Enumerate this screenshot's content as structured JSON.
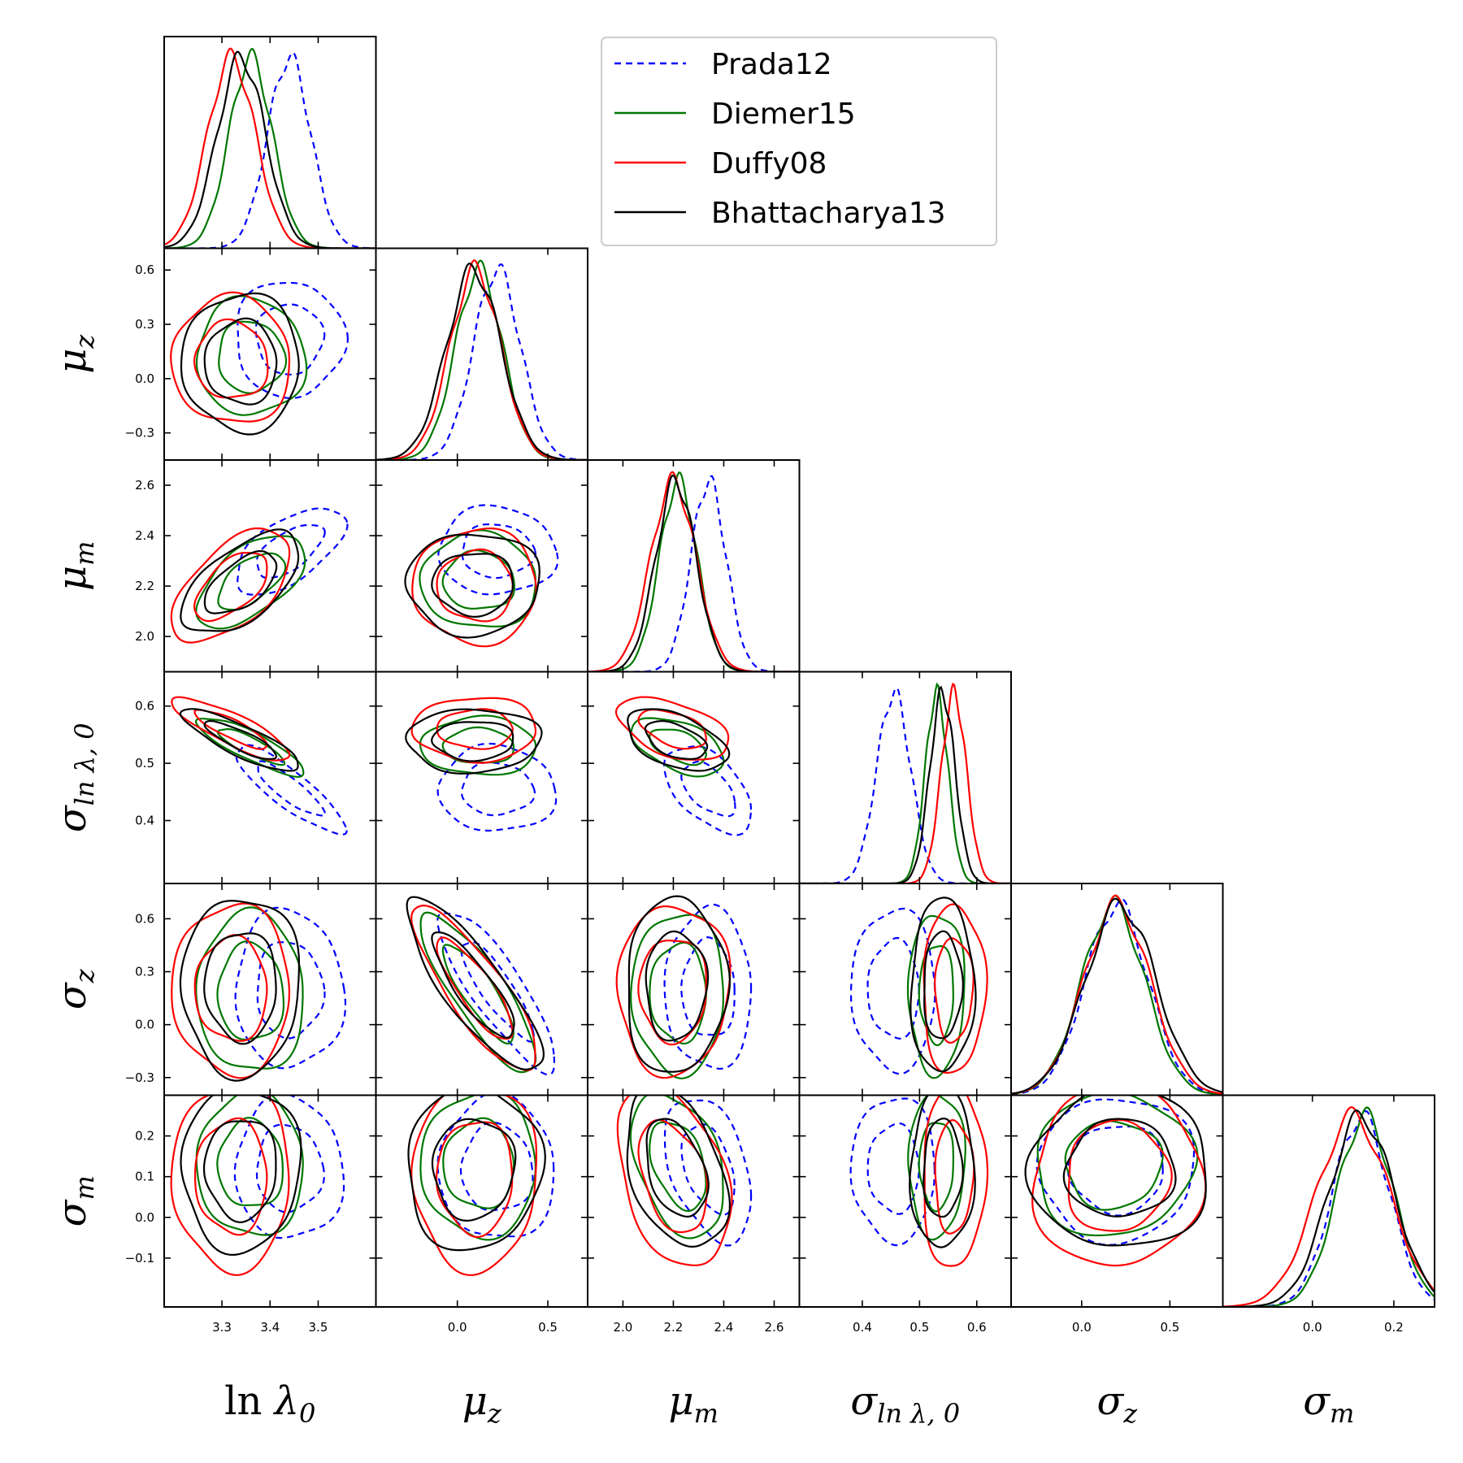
{
  "chart_data": {
    "type": "corner",
    "parameters": [
      {
        "key": "lnlam0",
        "label": "ln λ0",
        "label_main": "ln λ",
        "label_sub": "0",
        "range": [
          3.18,
          3.62
        ],
        "ticks": [
          3.3,
          3.4,
          3.5
        ],
        "tick_labels": [
          "3.3",
          "3.4",
          "3.5"
        ]
      },
      {
        "key": "muz",
        "label": "μz",
        "label_main": "μ",
        "label_sub": "z",
        "range": [
          -0.45,
          0.72
        ],
        "ticks": [
          -0.3,
          0.0,
          0.3,
          0.6
        ],
        "tick_labels": [
          "−0.3",
          "0.0",
          "0.3",
          "0.6"
        ],
        "x_ticks": [
          0.0,
          0.5
        ],
        "x_tick_labels": [
          "0.0",
          "0.5"
        ]
      },
      {
        "key": "mum",
        "label": "μm",
        "label_main": "μ",
        "label_sub": "m",
        "range": [
          1.86,
          2.7
        ],
        "ticks": [
          2.0,
          2.2,
          2.4,
          2.6
        ],
        "tick_labels": [
          "2.0",
          "2.2",
          "2.4",
          "2.6"
        ]
      },
      {
        "key": "slnlam",
        "label": "σln λ,0",
        "label_main": "σ",
        "label_sub": "ln λ, 0",
        "range": [
          0.29,
          0.66
        ],
        "ticks": [
          0.4,
          0.5,
          0.6
        ],
        "tick_labels": [
          "0.4",
          "0.5",
          "0.6"
        ]
      },
      {
        "key": "sigz",
        "label": "σz",
        "label_main": "σ",
        "label_sub": "z",
        "range": [
          -0.4,
          0.8
        ],
        "ticks": [
          -0.3,
          0.0,
          0.3,
          0.6
        ],
        "tick_labels": [
          "−0.3",
          "0.0",
          "0.3",
          "0.6"
        ],
        "x_ticks": [
          0.0,
          0.5
        ],
        "x_tick_labels": [
          "0.0",
          "0.5"
        ]
      },
      {
        "key": "sigm",
        "label": "σm",
        "label_main": "σ",
        "label_sub": "m",
        "range": [
          -0.22,
          0.3
        ],
        "ticks": [
          -0.1,
          0.0,
          0.1,
          0.2
        ],
        "tick_labels": [
          "−0.1",
          "0.0",
          "0.1",
          "0.2"
        ],
        "x_ticks": [
          0.0,
          0.2
        ],
        "x_tick_labels": [
          "0.0",
          "0.2"
        ]
      }
    ],
    "series": [
      {
        "name": "Prada12",
        "color": "#0000ff",
        "dash": "dashed",
        "mean": [
          3.44,
          0.22,
          2.34,
          0.455,
          0.2,
          0.12
        ],
        "sd": [
          0.045,
          0.13,
          0.07,
          0.03,
          0.18,
          0.07
        ],
        "corr": [
          [
            0,
            3,
            -0.85
          ],
          [
            0,
            2,
            0.6
          ],
          [
            2,
            3,
            -0.5
          ],
          [
            1,
            4,
            -0.85
          ],
          [
            2,
            5,
            -0.4
          ]
        ]
      },
      {
        "name": "Diemer15",
        "color": "#007700",
        "dash": "solid",
        "mean": [
          3.36,
          0.12,
          2.22,
          0.53,
          0.18,
          0.13
        ],
        "sd": [
          0.045,
          0.13,
          0.075,
          0.02,
          0.18,
          0.07
        ],
        "corr": [
          [
            0,
            3,
            -0.85
          ],
          [
            0,
            2,
            0.6
          ],
          [
            2,
            3,
            -0.5
          ],
          [
            1,
            4,
            -0.85
          ],
          [
            2,
            5,
            -0.4
          ]
        ]
      },
      {
        "name": "Duffy08",
        "color": "#ff0000",
        "dash": "solid",
        "mean": [
          3.32,
          0.1,
          2.2,
          0.56,
          0.2,
          0.1
        ],
        "sd": [
          0.05,
          0.14,
          0.09,
          0.022,
          0.19,
          0.09
        ],
        "corr": [
          [
            0,
            3,
            -0.85
          ],
          [
            0,
            2,
            0.6
          ],
          [
            2,
            3,
            -0.5
          ],
          [
            1,
            4,
            -0.85
          ],
          [
            2,
            5,
            -0.4
          ]
        ]
      },
      {
        "name": "Bhattacharya13",
        "color": "#000000",
        "dash": "solid",
        "mean": [
          3.34,
          0.09,
          2.21,
          0.54,
          0.22,
          0.12
        ],
        "sd": [
          0.05,
          0.15,
          0.08,
          0.022,
          0.2,
          0.08
        ],
        "corr": [
          [
            0,
            3,
            -0.85
          ],
          [
            0,
            2,
            0.6
          ],
          [
            2,
            3,
            -0.5
          ],
          [
            1,
            4,
            -0.85
          ],
          [
            2,
            5,
            -0.4
          ]
        ]
      }
    ],
    "contour_levels": [
      "68%",
      "95%"
    ],
    "legend_location": "upper-center"
  }
}
